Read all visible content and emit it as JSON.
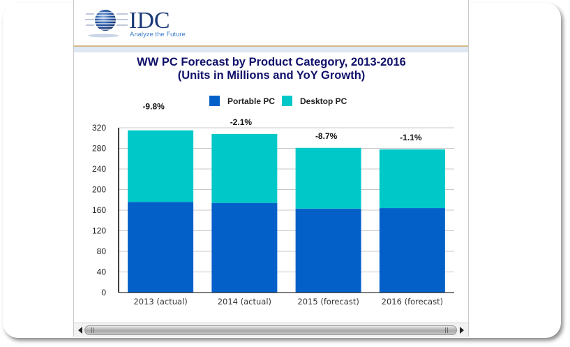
{
  "logo": {
    "brand": "IDC",
    "tagline": "Analyze the Future"
  },
  "colors": {
    "portable": "#0460c9",
    "desktop": "#00c8c8",
    "title": "#10106b",
    "grid": "#c8c8c8",
    "header_line": "#d7b98a",
    "header_band": "#dde8f3"
  },
  "chart_data": {
    "type": "bar",
    "stacked": true,
    "title": "WW PC Forecast by Product Category, 2013-2016",
    "subtitle": "(Units in Millions and YoY Growth)",
    "xlabel": "",
    "ylabel": "",
    "categories": [
      "2013 (actual)",
      "2014 (actual)",
      "2015 (forecast)",
      "2016 (forecast)"
    ],
    "series": [
      {
        "name": "Portable PC",
        "values": [
          176,
          174,
          163,
          164
        ]
      },
      {
        "name": "Desktop PC",
        "values": [
          139,
          134,
          118,
          114
        ]
      }
    ],
    "annotations": [
      "-9.8%",
      "-2.1%",
      "-8.7%",
      "-1.1%"
    ],
    "ylim": [
      0,
      320
    ],
    "yticks": [
      0,
      40,
      80,
      120,
      160,
      200,
      240,
      280,
      320
    ],
    "grid": true,
    "legend": "top-center"
  },
  "scrollbar": {
    "orientation": "horizontal"
  }
}
